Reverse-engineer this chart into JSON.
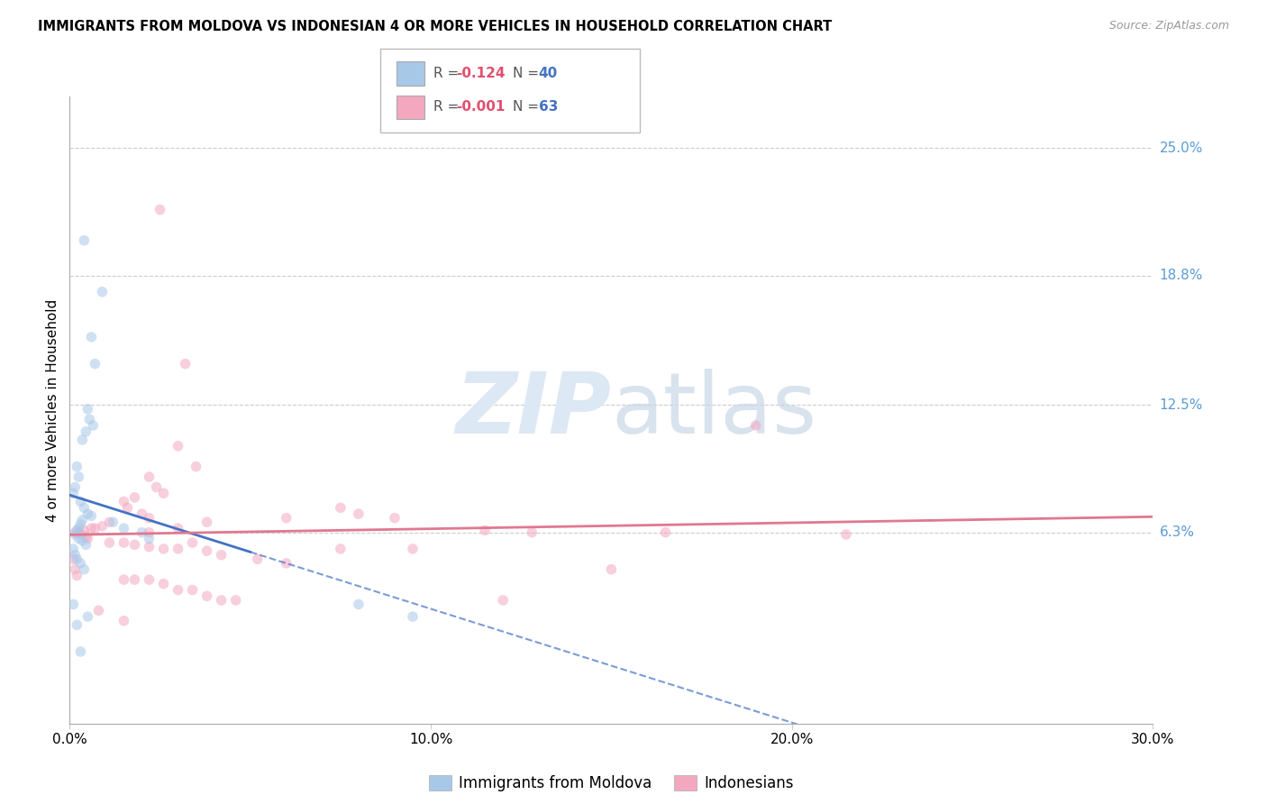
{
  "title": "IMMIGRANTS FROM MOLDOVA VS INDONESIAN 4 OR MORE VEHICLES IN HOUSEHOLD CORRELATION CHART",
  "source": "Source: ZipAtlas.com",
  "ylabel": "4 or more Vehicles in Household",
  "xlabel_ticks": [
    "0.0%",
    "10.0%",
    "20.0%",
    "30.0%"
  ],
  "xlabel_tick_vals": [
    0.0,
    10.0,
    20.0,
    30.0
  ],
  "ytick_labels": [
    "6.3%",
    "12.5%",
    "18.8%",
    "25.0%"
  ],
  "ytick_vals": [
    6.3,
    12.5,
    18.8,
    25.0
  ],
  "xlim": [
    0.0,
    30.0
  ],
  "ylim": [
    -3.0,
    27.5
  ],
  "legend_labels_bottom": [
    "Immigrants from Moldova",
    "Indonesians"
  ],
  "moldova_color": "#a8c8e8",
  "indonesia_color": "#f4a8c0",
  "trend_moldova_color": "#4472c4",
  "trend_indonesia_color": "#e07890",
  "moldova_scatter": [
    [
      0.4,
      20.5
    ],
    [
      0.9,
      18.0
    ],
    [
      0.6,
      15.8
    ],
    [
      0.7,
      14.5
    ],
    [
      0.5,
      12.3
    ],
    [
      0.55,
      11.8
    ],
    [
      0.65,
      11.5
    ],
    [
      0.45,
      11.2
    ],
    [
      0.35,
      10.8
    ],
    [
      0.2,
      9.5
    ],
    [
      0.25,
      9.0
    ],
    [
      0.15,
      8.5
    ],
    [
      0.1,
      8.2
    ],
    [
      0.3,
      7.8
    ],
    [
      0.4,
      7.5
    ],
    [
      0.5,
      7.2
    ],
    [
      0.6,
      7.1
    ],
    [
      0.35,
      6.9
    ],
    [
      0.3,
      6.7
    ],
    [
      0.25,
      6.5
    ],
    [
      0.2,
      6.4
    ],
    [
      0.15,
      6.2
    ],
    [
      0.25,
      6.0
    ],
    [
      0.35,
      5.9
    ],
    [
      0.45,
      5.7
    ],
    [
      1.2,
      6.8
    ],
    [
      1.5,
      6.5
    ],
    [
      2.0,
      6.3
    ],
    [
      2.2,
      6.0
    ],
    [
      0.1,
      5.5
    ],
    [
      0.15,
      5.2
    ],
    [
      0.2,
      5.0
    ],
    [
      0.3,
      4.8
    ],
    [
      0.4,
      4.5
    ],
    [
      0.1,
      2.8
    ],
    [
      0.5,
      2.2
    ],
    [
      0.2,
      1.8
    ],
    [
      8.0,
      2.8
    ],
    [
      9.5,
      2.2
    ],
    [
      0.3,
      0.5
    ]
  ],
  "indonesia_scatter": [
    [
      2.5,
      22.0
    ],
    [
      3.2,
      14.5
    ],
    [
      3.0,
      10.5
    ],
    [
      3.5,
      9.5
    ],
    [
      2.2,
      9.0
    ],
    [
      2.4,
      8.5
    ],
    [
      2.6,
      8.2
    ],
    [
      1.8,
      8.0
    ],
    [
      1.5,
      7.8
    ],
    [
      1.6,
      7.5
    ],
    [
      2.0,
      7.2
    ],
    [
      2.2,
      7.0
    ],
    [
      1.1,
      6.8
    ],
    [
      0.9,
      6.6
    ],
    [
      0.7,
      6.5
    ],
    [
      0.6,
      6.5
    ],
    [
      0.4,
      6.4
    ],
    [
      0.25,
      6.3
    ],
    [
      0.15,
      6.3
    ],
    [
      0.3,
      6.2
    ],
    [
      0.45,
      6.1
    ],
    [
      0.5,
      6.0
    ],
    [
      1.1,
      5.8
    ],
    [
      1.5,
      5.8
    ],
    [
      1.8,
      5.7
    ],
    [
      2.2,
      5.6
    ],
    [
      2.6,
      5.5
    ],
    [
      3.0,
      5.5
    ],
    [
      3.8,
      5.4
    ],
    [
      4.2,
      5.2
    ],
    [
      5.2,
      5.0
    ],
    [
      6.0,
      4.8
    ],
    [
      0.1,
      5.0
    ],
    [
      0.15,
      4.5
    ],
    [
      0.2,
      4.2
    ],
    [
      1.5,
      4.0
    ],
    [
      1.8,
      4.0
    ],
    [
      2.2,
      4.0
    ],
    [
      2.6,
      3.8
    ],
    [
      3.0,
      3.5
    ],
    [
      3.4,
      3.5
    ],
    [
      3.8,
      3.2
    ],
    [
      4.2,
      3.0
    ],
    [
      4.6,
      3.0
    ],
    [
      0.8,
      2.5
    ],
    [
      1.5,
      2.0
    ],
    [
      9.0,
      7.0
    ],
    [
      11.5,
      6.4
    ],
    [
      12.8,
      6.3
    ],
    [
      15.0,
      4.5
    ],
    [
      16.5,
      6.3
    ],
    [
      19.0,
      11.5
    ],
    [
      21.5,
      6.2
    ],
    [
      12.0,
      3.0
    ],
    [
      9.5,
      5.5
    ],
    [
      7.5,
      5.5
    ],
    [
      7.5,
      7.5
    ],
    [
      8.0,
      7.2
    ],
    [
      6.0,
      7.0
    ],
    [
      2.2,
      6.3
    ],
    [
      3.0,
      6.5
    ],
    [
      3.4,
      5.8
    ],
    [
      3.8,
      6.8
    ]
  ],
  "marker_size": 70,
  "marker_alpha": 0.55,
  "background_color": "#ffffff",
  "grid_color": "#cccccc",
  "watermark_color": "#dce8f4",
  "right_ytick_color": "#5b9bd5",
  "R_val_color": "#e05070",
  "N_val_color": "#4472c4"
}
